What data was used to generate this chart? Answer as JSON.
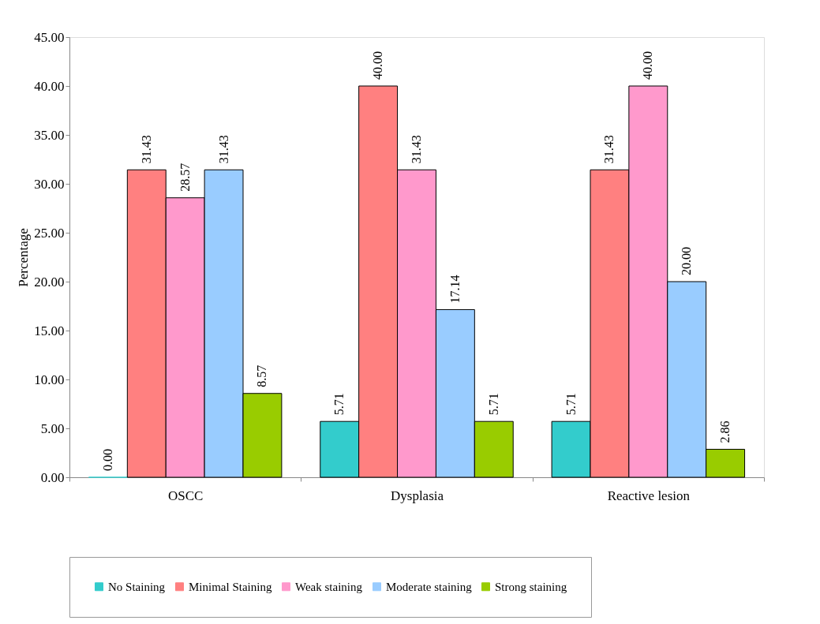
{
  "chart_data": {
    "type": "bar",
    "ylabel": "Percentage",
    "categories": [
      "OSCC",
      "Dysplasia",
      "Reactive lesion"
    ],
    "series": [
      {
        "name": "No Staining",
        "color": "#33cccc",
        "values": [
          0,
          5.71,
          5.71
        ],
        "value_labels": [
          "0.00",
          "5.71",
          "5.71"
        ]
      },
      {
        "name": "Minimal Staining",
        "color": "#ff8080",
        "values": [
          31.43,
          40,
          31.43
        ],
        "value_labels": [
          "31.43",
          "40.00",
          "31.43"
        ]
      },
      {
        "name": "Weak staining",
        "color": "#ff99cc",
        "values": [
          28.57,
          31.43,
          40
        ],
        "value_labels": [
          "28.57",
          "31.43",
          "40.00"
        ]
      },
      {
        "name": "Moderate staining",
        "color": "#99ccff",
        "values": [
          31.43,
          17.14,
          20
        ],
        "value_labels": [
          "31.43",
          "17.14",
          "20.00"
        ]
      },
      {
        "name": "Strong staining",
        "color": "#99cc00",
        "values": [
          8.57,
          5.71,
          2.86
        ],
        "value_labels": [
          "8.57",
          "5.71",
          "2.86"
        ]
      }
    ],
    "ylim": [
      0,
      45
    ],
    "yticks": [
      {
        "value": 0,
        "label": "0.00"
      },
      {
        "value": 5,
        "label": "5.00"
      },
      {
        "value": 10,
        "label": "10.00"
      },
      {
        "value": 15,
        "label": "15.00"
      },
      {
        "value": 20,
        "label": "20.00"
      },
      {
        "value": 25,
        "label": "25.00"
      },
      {
        "value": 30,
        "label": "30.00"
      },
      {
        "value": 35,
        "label": "35.00"
      },
      {
        "value": 40,
        "label": "40.00"
      },
      {
        "value": 45,
        "label": "45.00"
      }
    ],
    "grid": false,
    "legend": "bottom"
  }
}
